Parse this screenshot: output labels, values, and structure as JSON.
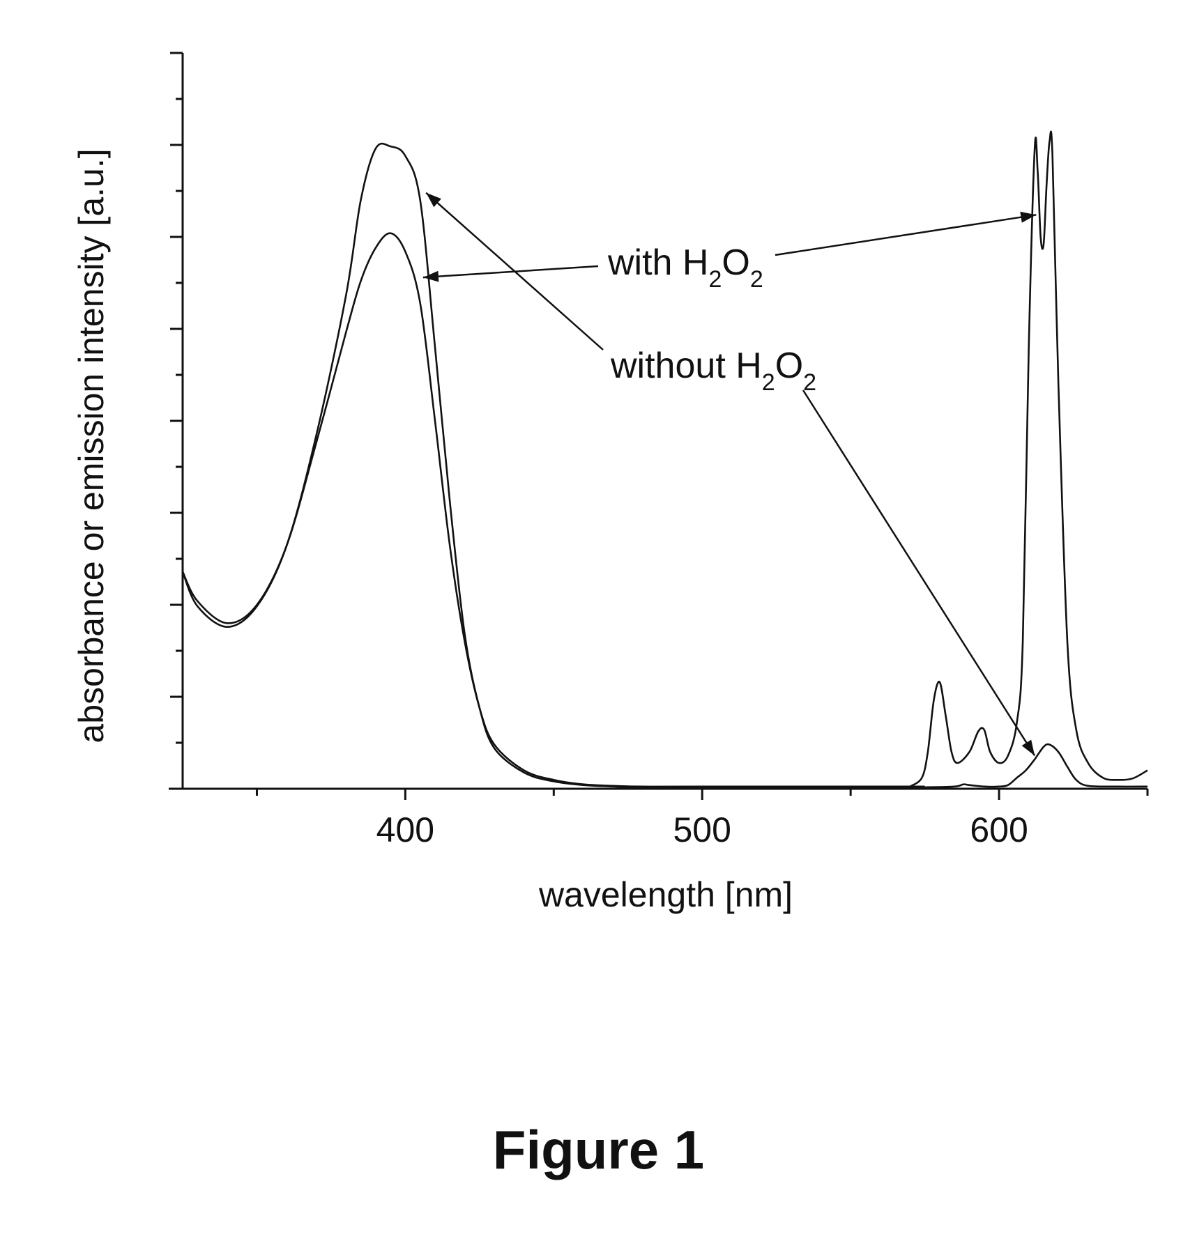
{
  "figure_caption": "Figure 1",
  "chart_data": {
    "type": "line",
    "xlabel": "wavelength [nm]",
    "ylabel": "absorbance or emission intensity [a.u.]",
    "xlim": [
      325,
      650
    ],
    "ylim": [
      0,
      100
    ],
    "x_ticks": [
      400,
      500,
      600
    ],
    "x_minor_ticks": [
      350,
      450,
      550,
      650
    ],
    "y_ticks_labeled": false,
    "grid": false,
    "colors": {
      "line": "#111111",
      "axis": "#111111"
    },
    "annotations": [
      {
        "id": "with",
        "prefix": "with H",
        "sub1": "2",
        "mid": "O",
        "sub2": "2"
      },
      {
        "id": "without",
        "prefix": "without H",
        "sub1": "2",
        "mid": "O",
        "sub2": "2"
      }
    ],
    "series": [
      {
        "x": [
          325,
          330,
          340,
          350,
          360,
          370,
          380,
          385,
          390,
          395,
          400,
          405,
          410,
          415,
          420,
          425,
          430,
          440,
          450,
          460,
          470,
          480,
          500,
          550,
          575
        ],
        "values": [
          29.5,
          25.5,
          22.5,
          25,
          33,
          47,
          62,
          69,
          73.5,
          75.5,
          73,
          66,
          50,
          33,
          20,
          11,
          6,
          2.5,
          1.2,
          0.6,
          0.4,
          0.3,
          0.3,
          0.3,
          0.3
        ]
      },
      {
        "x": [
          325,
          330,
          340,
          350,
          360,
          370,
          380,
          385,
          390,
          395,
          400,
          405,
          410,
          415,
          420,
          425,
          430,
          440,
          450,
          460,
          470,
          480,
          500,
          550,
          575
        ],
        "values": [
          29.5,
          24.8,
          22,
          24.8,
          33,
          48,
          67,
          80,
          87,
          87.3,
          86,
          80,
          60,
          39,
          21,
          11,
          5.5,
          2.2,
          1,
          0.5,
          0.3,
          0.2,
          0.2,
          0.2,
          0.2
        ]
      },
      {
        "x": [
          570,
          574,
          576,
          578,
          580,
          582,
          584,
          586,
          590,
          593,
          595,
          597,
          600,
          603,
          606,
          608,
          610,
          612,
          613,
          614,
          615,
          616,
          617,
          618,
          620,
          623,
          626,
          630,
          635,
          640,
          645,
          650
        ],
        "values": [
          0.3,
          1.5,
          5,
          12,
          14.5,
          10,
          5,
          3.5,
          5,
          7.8,
          8,
          5,
          3.5,
          4.5,
          9,
          20,
          60,
          87,
          84,
          75,
          74,
          82,
          88,
          86,
          55,
          20,
          8,
          3.5,
          1.5,
          1.2,
          1.4,
          2.5
        ]
      },
      {
        "x": [
          575,
          585,
          588,
          590,
          595,
          600,
          603,
          606,
          609,
          612,
          615,
          617,
          620,
          623,
          626,
          630,
          640,
          650
        ],
        "values": [
          0.2,
          0.3,
          0.6,
          0.5,
          0.3,
          0.3,
          0.5,
          1.5,
          2.5,
          4,
          5.7,
          6,
          5,
          3,
          1.2,
          0.4,
          0.3,
          0.3
        ]
      }
    ]
  }
}
